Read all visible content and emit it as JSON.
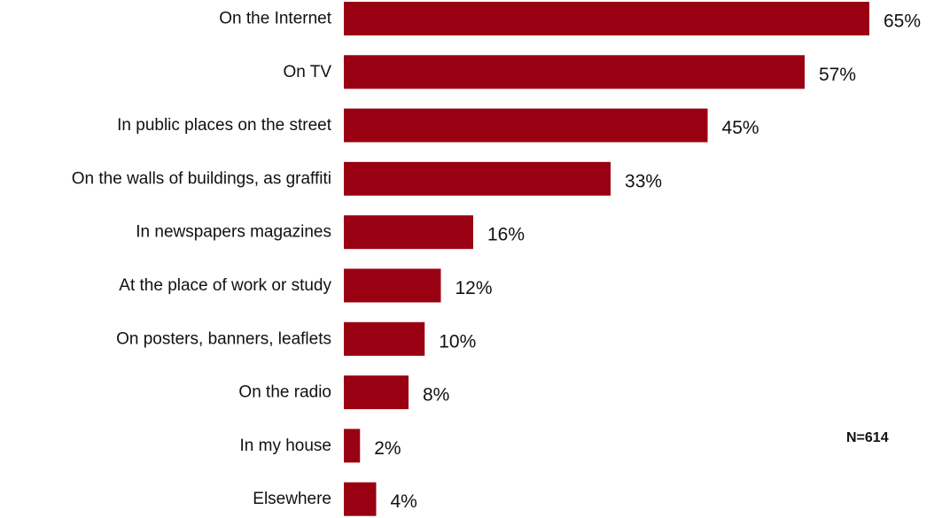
{
  "chart_data": {
    "type": "bar",
    "orientation": "horizontal",
    "categories": [
      "On the Internet",
      "On TV",
      "In public places on the street",
      "On the walls of buildings, as graffiti",
      "In newspapers magazines",
      "At the place of work or study",
      "On posters, banners, leaflets",
      "On the radio",
      "In my house",
      "Elsewhere"
    ],
    "values": [
      65,
      57,
      45,
      33,
      16,
      12,
      10,
      8,
      2,
      4
    ],
    "value_labels": [
      "65%",
      "57%",
      "45%",
      "33%",
      "16%",
      "12%",
      "10%",
      "8%",
      "2%",
      "4%"
    ],
    "xlim": [
      0,
      65
    ],
    "grid": false,
    "legend": "none",
    "bar_color": "#990012"
  },
  "note": "N=614"
}
